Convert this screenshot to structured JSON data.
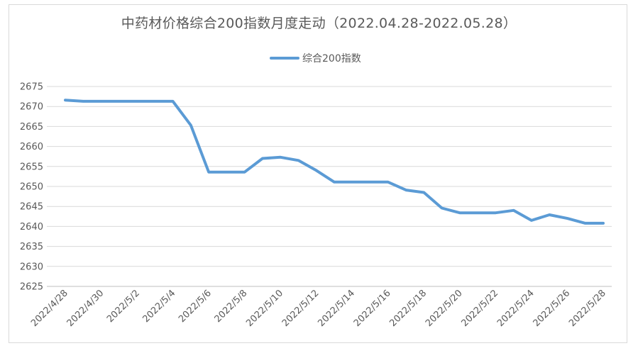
{
  "chart_data": {
    "type": "line",
    "title": "中药材价格综合200指数月度走动（2022.04.28-2022.05.28）",
    "xlabel": "",
    "ylabel": "",
    "ylim": [
      2625,
      2675
    ],
    "yticks": [
      2625,
      2630,
      2635,
      2640,
      2645,
      2650,
      2655,
      2660,
      2665,
      2670,
      2675
    ],
    "grid": true,
    "legend_position": "top-center",
    "x": [
      "2022/4/28",
      "2022/4/29",
      "2022/4/30",
      "2022/5/1",
      "2022/5/2",
      "2022/5/3",
      "2022/5/4",
      "2022/5/5",
      "2022/5/6",
      "2022/5/7",
      "2022/5/8",
      "2022/5/9",
      "2022/5/10",
      "2022/5/11",
      "2022/5/12",
      "2022/5/13",
      "2022/5/14",
      "2022/5/15",
      "2022/5/16",
      "2022/5/17",
      "2022/5/18",
      "2022/5/19",
      "2022/5/20",
      "2022/5/21",
      "2022/5/22",
      "2022/5/23",
      "2022/5/24",
      "2022/5/25",
      "2022/5/26",
      "2022/5/27",
      "2022/5/28"
    ],
    "xtick_labels": [
      "2022/4/28",
      "2022/4/30",
      "2022/5/2",
      "2022/5/4",
      "2022/5/6",
      "2022/5/8",
      "2022/5/10",
      "2022/5/12",
      "2022/5/14",
      "2022/5/16",
      "2022/5/18",
      "2022/5/20",
      "2022/5/22",
      "2022/5/24",
      "2022/5/26",
      "2022/5/28"
    ],
    "series": [
      {
        "name": "综合200指数",
        "color": "#5b9bd5",
        "values": [
          2671.6,
          2671.3,
          2671.3,
          2671.3,
          2671.3,
          2671.3,
          2671.3,
          2665.3,
          2653.6,
          2653.6,
          2653.6,
          2657.0,
          2657.3,
          2656.5,
          2654.0,
          2651.1,
          2651.1,
          2651.1,
          2651.1,
          2649.1,
          2648.5,
          2644.6,
          2643.4,
          2643.4,
          2643.4,
          2644.0,
          2641.5,
          2642.9,
          2642.0,
          2640.8,
          2640.8
        ]
      }
    ]
  }
}
